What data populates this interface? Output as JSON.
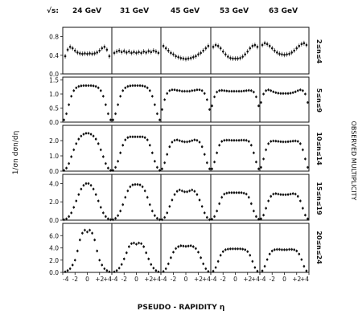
{
  "chart_data": {
    "type": "scatter",
    "sqrt_s_label": "√s:",
    "energies": [
      "24 GeV",
      "31 GeV",
      "45 GeV",
      "53 GeV",
      "63 GeV"
    ],
    "multiplicity_bins": [
      "2≤n≤4",
      "5≤n≤9",
      "10≤n≤14",
      "15≤n≤19",
      "20≤n≤24"
    ],
    "xlabel": "PSEUDO - RAPIDITY η",
    "ylabel": "1/σn dσn/dη",
    "right_label": "OBSERVED MULTIPLICITY",
    "xlim": [
      -4,
      4
    ],
    "x_ticks": [
      -4,
      -2,
      0,
      2,
      4
    ],
    "x_tick_labels": [
      "-4",
      "-2",
      "0",
      "+2",
      "+4"
    ],
    "row_axes": [
      {
        "ylim": [
          0,
          1.0
        ],
        "ticks": [
          0.0,
          0.4,
          0.8
        ],
        "tick_labels": [
          "0.0",
          "0.4",
          "0.8"
        ]
      },
      {
        "ylim": [
          0,
          1.6
        ],
        "ticks": [
          0.0,
          0.5,
          1.0,
          1.5
        ],
        "tick_labels": [
          "0.0",
          "0.5",
          "1.0",
          "1.5"
        ]
      },
      {
        "ylim": [
          0,
          3.0
        ],
        "ticks": [
          0.0,
          1.0,
          2.0
        ],
        "tick_labels": [
          "0.0",
          "1.0",
          "2.0"
        ]
      },
      {
        "ylim": [
          0,
          5.0
        ],
        "ticks": [
          0.0,
          2.0,
          4.0
        ],
        "tick_labels": [
          "0.0",
          "2.0",
          "4.0"
        ]
      },
      {
        "ylim": [
          0,
          8.0
        ],
        "ticks": [
          0.0,
          2.0,
          4.0,
          6.0
        ],
        "tick_labels": [
          "0.0",
          "2.0",
          "4.0",
          "6.0"
        ]
      }
    ],
    "series": [
      {
        "row": 0,
        "col": 0,
        "x": [
          -3.6,
          -3.2,
          -2.8,
          -2.4,
          -2.0,
          -1.6,
          -1.2,
          -0.8,
          -0.4,
          0.0,
          0.4,
          0.8,
          1.2,
          1.6,
          2.0,
          2.4,
          2.8,
          3.2,
          3.6
        ],
        "y": [
          0.38,
          0.52,
          0.58,
          0.55,
          0.5,
          0.46,
          0.44,
          0.43,
          0.44,
          0.43,
          0.44,
          0.43,
          0.44,
          0.46,
          0.5,
          0.55,
          0.58,
          0.52,
          0.38
        ]
      },
      {
        "row": 0,
        "col": 1,
        "x": [
          -3.6,
          -3.2,
          -2.8,
          -2.4,
          -2.0,
          -1.6,
          -1.2,
          -0.8,
          -0.4,
          0.0,
          0.4,
          0.8,
          1.2,
          1.6,
          2.0,
          2.4,
          2.8,
          3.2,
          3.6
        ],
        "y": [
          0.45,
          0.48,
          0.5,
          0.47,
          0.49,
          0.46,
          0.48,
          0.45,
          0.47,
          0.45,
          0.47,
          0.45,
          0.48,
          0.46,
          0.49,
          0.47,
          0.5,
          0.48,
          0.45
        ]
      },
      {
        "row": 0,
        "col": 2,
        "x": [
          -3.6,
          -3.2,
          -2.8,
          -2.4,
          -2.0,
          -1.6,
          -1.2,
          -0.8,
          -0.4,
          0.0,
          0.4,
          0.8,
          1.2,
          1.6,
          2.0,
          2.4,
          2.8,
          3.2,
          3.6
        ],
        "y": [
          0.6,
          0.55,
          0.5,
          0.45,
          0.42,
          0.38,
          0.36,
          0.34,
          0.33,
          0.32,
          0.33,
          0.34,
          0.36,
          0.38,
          0.42,
          0.45,
          0.5,
          0.55,
          0.6
        ]
      },
      {
        "row": 0,
        "col": 3,
        "x": [
          -3.6,
          -3.2,
          -2.8,
          -2.4,
          -2.0,
          -1.6,
          -1.2,
          -0.8,
          -0.4,
          0.0,
          0.4,
          0.8,
          1.2,
          1.6,
          2.0,
          2.4,
          2.8,
          3.2,
          3.6
        ],
        "y": [
          0.58,
          0.62,
          0.6,
          0.55,
          0.48,
          0.42,
          0.37,
          0.34,
          0.33,
          0.33,
          0.33,
          0.34,
          0.37,
          0.42,
          0.48,
          0.55,
          0.6,
          0.62,
          0.58
        ]
      },
      {
        "row": 0,
        "col": 4,
        "x": [
          -3.6,
          -3.2,
          -2.8,
          -2.4,
          -2.0,
          -1.6,
          -1.2,
          -0.8,
          -0.4,
          0.0,
          0.4,
          0.8,
          1.2,
          1.6,
          2.0,
          2.4,
          2.8,
          3.2,
          3.6
        ],
        "y": [
          0.62,
          0.66,
          0.64,
          0.6,
          0.55,
          0.5,
          0.46,
          0.43,
          0.42,
          0.41,
          0.42,
          0.43,
          0.46,
          0.5,
          0.55,
          0.6,
          0.64,
          0.66,
          0.62
        ]
      },
      {
        "row": 1,
        "col": 0,
        "x": [
          -3.8,
          -3.4,
          -3.0,
          -2.6,
          -2.2,
          -1.8,
          -1.4,
          -1.0,
          -0.6,
          -0.2,
          0.2,
          0.6,
          1.0,
          1.4,
          1.8,
          2.2,
          2.6,
          3.0,
          3.4,
          3.8
        ],
        "y": [
          0.08,
          0.3,
          0.62,
          0.92,
          1.12,
          1.22,
          1.27,
          1.29,
          1.3,
          1.3,
          1.3,
          1.3,
          1.29,
          1.27,
          1.22,
          1.12,
          0.92,
          0.62,
          0.3,
          0.08
        ]
      },
      {
        "row": 1,
        "col": 1,
        "x": [
          -3.8,
          -3.4,
          -3.0,
          -2.6,
          -2.2,
          -1.8,
          -1.4,
          -1.0,
          -0.6,
          -0.2,
          0.2,
          0.6,
          1.0,
          1.4,
          1.8,
          2.2,
          2.6,
          3.0,
          3.4,
          3.8
        ],
        "y": [
          0.08,
          0.3,
          0.62,
          0.92,
          1.12,
          1.22,
          1.27,
          1.29,
          1.3,
          1.3,
          1.3,
          1.3,
          1.29,
          1.27,
          1.22,
          1.12,
          0.92,
          0.62,
          0.3,
          0.08
        ]
      },
      {
        "row": 1,
        "col": 2,
        "x": [
          -3.8,
          -3.4,
          -3.0,
          -2.6,
          -2.2,
          -1.8,
          -1.4,
          -1.0,
          -0.6,
          -0.2,
          0.2,
          0.6,
          1.0,
          1.4,
          1.8,
          2.2,
          2.6,
          3.0,
          3.4,
          3.8
        ],
        "y": [
          0.45,
          0.8,
          1.02,
          1.12,
          1.15,
          1.15,
          1.13,
          1.12,
          1.1,
          1.1,
          1.1,
          1.1,
          1.12,
          1.13,
          1.15,
          1.15,
          1.12,
          1.02,
          0.8,
          0.45
        ]
      },
      {
        "row": 1,
        "col": 3,
        "x": [
          -3.8,
          -3.4,
          -3.0,
          -2.6,
          -2.2,
          -1.8,
          -1.4,
          -1.0,
          -0.6,
          -0.2,
          0.2,
          0.6,
          1.0,
          1.4,
          1.8,
          2.2,
          2.6,
          3.0,
          3.4,
          3.8
        ],
        "y": [
          0.58,
          0.9,
          1.07,
          1.12,
          1.13,
          1.12,
          1.11,
          1.1,
          1.1,
          1.1,
          1.1,
          1.1,
          1.1,
          1.11,
          1.12,
          1.13,
          1.12,
          1.07,
          0.9,
          0.58
        ]
      },
      {
        "row": 1,
        "col": 4,
        "x": [
          -3.8,
          -3.4,
          -3.0,
          -2.6,
          -2.2,
          -1.8,
          -1.4,
          -1.0,
          -0.6,
          -0.2,
          0.2,
          0.6,
          1.0,
          1.4,
          1.8,
          2.2,
          2.6,
          3.0,
          3.4,
          3.8
        ],
        "y": [
          0.7,
          1.0,
          1.12,
          1.15,
          1.12,
          1.08,
          1.05,
          1.03,
          1.02,
          1.02,
          1.02,
          1.02,
          1.03,
          1.05,
          1.08,
          1.12,
          1.15,
          1.12,
          1.0,
          0.7
        ]
      },
      {
        "row": 2,
        "col": 0,
        "x": [
          -3.8,
          -3.4,
          -3.0,
          -2.6,
          -2.2,
          -1.8,
          -1.4,
          -1.0,
          -0.6,
          -0.2,
          0.2,
          0.6,
          1.0,
          1.4,
          1.8,
          2.2,
          2.6,
          3.0,
          3.4,
          3.8
        ],
        "y": [
          0.05,
          0.2,
          0.5,
          0.95,
          1.4,
          1.8,
          2.1,
          2.3,
          2.42,
          2.48,
          2.48,
          2.42,
          2.3,
          2.1,
          1.8,
          1.4,
          0.95,
          0.5,
          0.2,
          0.05
        ]
      },
      {
        "row": 2,
        "col": 1,
        "x": [
          -3.8,
          -3.4,
          -3.0,
          -2.6,
          -2.2,
          -1.8,
          -1.4,
          -1.0,
          -0.6,
          -0.2,
          0.2,
          0.6,
          1.0,
          1.4,
          1.8,
          2.2,
          2.6,
          3.0,
          3.4,
          3.8
        ],
        "y": [
          0.05,
          0.25,
          0.65,
          1.2,
          1.7,
          2.05,
          2.2,
          2.25,
          2.25,
          2.25,
          2.25,
          2.25,
          2.25,
          2.2,
          2.05,
          1.7,
          1.2,
          0.65,
          0.25,
          0.05
        ]
      },
      {
        "row": 2,
        "col": 2,
        "x": [
          -3.8,
          -3.4,
          -3.0,
          -2.6,
          -2.2,
          -1.8,
          -1.4,
          -1.0,
          -0.6,
          -0.2,
          0.2,
          0.6,
          1.0,
          1.4,
          1.8,
          2.2,
          2.6,
          3.0,
          3.4,
          3.8
        ],
        "y": [
          0.15,
          0.55,
          1.1,
          1.6,
          1.9,
          2.02,
          2.05,
          2.0,
          1.95,
          1.92,
          1.92,
          1.95,
          2.0,
          2.05,
          2.02,
          1.9,
          1.6,
          1.1,
          0.55,
          0.15
        ]
      },
      {
        "row": 2,
        "col": 3,
        "x": [
          -3.8,
          -3.4,
          -3.0,
          -2.6,
          -2.2,
          -1.8,
          -1.4,
          -1.0,
          -0.6,
          -0.2,
          0.2,
          0.6,
          1.0,
          1.4,
          1.8,
          2.2,
          2.6,
          3.0,
          3.4,
          3.8
        ],
        "y": [
          0.15,
          0.6,
          1.2,
          1.7,
          1.95,
          2.02,
          2.03,
          2.03,
          2.02,
          2.02,
          2.02,
          2.02,
          2.03,
          2.03,
          2.02,
          1.95,
          1.7,
          1.2,
          0.6,
          0.15
        ]
      },
      {
        "row": 2,
        "col": 4,
        "x": [
          -3.8,
          -3.4,
          -3.0,
          -2.6,
          -2.2,
          -1.8,
          -1.4,
          -1.0,
          -0.6,
          -0.2,
          0.2,
          0.6,
          1.0,
          1.4,
          1.8,
          2.2,
          2.6,
          3.0,
          3.4,
          3.8
        ],
        "y": [
          0.25,
          0.8,
          1.4,
          1.8,
          1.95,
          1.98,
          1.97,
          1.95,
          1.93,
          1.92,
          1.92,
          1.93,
          1.95,
          1.97,
          1.98,
          1.95,
          1.8,
          1.4,
          0.8,
          0.25
        ]
      },
      {
        "row": 3,
        "col": 0,
        "x": [
          -3.8,
          -3.4,
          -3.0,
          -2.6,
          -2.2,
          -1.8,
          -1.4,
          -1.0,
          -0.6,
          -0.2,
          0.2,
          0.6,
          1.0,
          1.4,
          1.8,
          2.2,
          2.6,
          3.0,
          3.4,
          3.8
        ],
        "y": [
          0.05,
          0.15,
          0.4,
          0.8,
          1.4,
          2.1,
          2.8,
          3.4,
          3.8,
          4.0,
          4.0,
          3.8,
          3.4,
          2.8,
          2.1,
          1.4,
          0.8,
          0.4,
          0.15,
          0.05
        ]
      },
      {
        "row": 3,
        "col": 1,
        "x": [
          -3.8,
          -3.4,
          -3.0,
          -2.6,
          -2.2,
          -1.8,
          -1.4,
          -1.0,
          -0.6,
          -0.2,
          0.2,
          0.6,
          1.0,
          1.4,
          1.8,
          2.2,
          2.6,
          3.0,
          3.4,
          3.8
        ],
        "y": [
          0.05,
          0.2,
          0.5,
          1.0,
          1.7,
          2.5,
          3.2,
          3.65,
          3.85,
          3.9,
          3.9,
          3.85,
          3.65,
          3.2,
          2.5,
          1.7,
          1.0,
          0.5,
          0.2,
          0.05
        ]
      },
      {
        "row": 3,
        "col": 2,
        "x": [
          -3.8,
          -3.4,
          -3.0,
          -2.6,
          -2.2,
          -1.8,
          -1.4,
          -1.0,
          -0.6,
          -0.2,
          0.2,
          0.6,
          1.0,
          1.4,
          1.8,
          2.2,
          2.6,
          3.0,
          3.4,
          3.8
        ],
        "y": [
          0.05,
          0.3,
          0.8,
          1.5,
          2.2,
          2.8,
          3.15,
          3.3,
          3.2,
          3.1,
          3.1,
          3.2,
          3.3,
          3.15,
          2.8,
          2.2,
          1.5,
          0.8,
          0.3,
          0.05
        ]
      },
      {
        "row": 3,
        "col": 3,
        "x": [
          -3.8,
          -3.4,
          -3.0,
          -2.6,
          -2.2,
          -1.8,
          -1.4,
          -1.0,
          -0.6,
          -0.2,
          0.2,
          0.6,
          1.0,
          1.4,
          1.8,
          2.2,
          2.6,
          3.0,
          3.4,
          3.8
        ],
        "y": [
          0.1,
          0.4,
          1.0,
          1.8,
          2.5,
          2.85,
          2.95,
          3.0,
          3.0,
          3.0,
          3.0,
          3.0,
          3.0,
          2.95,
          2.85,
          2.5,
          1.8,
          1.0,
          0.4,
          0.1
        ]
      },
      {
        "row": 3,
        "col": 4,
        "x": [
          -3.8,
          -3.4,
          -3.0,
          -2.6,
          -2.2,
          -1.8,
          -1.4,
          -1.0,
          -0.6,
          -0.2,
          0.2,
          0.6,
          1.0,
          1.4,
          1.8,
          2.2,
          2.6,
          3.0,
          3.4,
          3.8
        ],
        "y": [
          0.15,
          0.55,
          1.3,
          2.1,
          2.6,
          2.85,
          2.9,
          2.85,
          2.8,
          2.78,
          2.78,
          2.8,
          2.85,
          2.9,
          2.85,
          2.6,
          2.1,
          1.3,
          0.55,
          0.15
        ]
      },
      {
        "row": 4,
        "col": 0,
        "x": [
          -3.6,
          -3.2,
          -2.8,
          -2.4,
          -2.0,
          -1.6,
          -1.2,
          -0.8,
          -0.4,
          0.0,
          0.4,
          0.8,
          1.2,
          1.6,
          2.0,
          2.4,
          2.8,
          3.2,
          3.6
        ],
        "y": [
          0.1,
          0.3,
          0.6,
          1.2,
          2.0,
          3.5,
          5.3,
          6.4,
          6.9,
          6.6,
          6.9,
          6.4,
          5.3,
          3.5,
          2.0,
          1.2,
          0.6,
          0.3,
          0.1
        ]
      },
      {
        "row": 4,
        "col": 1,
        "x": [
          -3.6,
          -3.2,
          -2.8,
          -2.4,
          -2.0,
          -1.6,
          -1.2,
          -0.8,
          -0.4,
          0.0,
          0.4,
          0.8,
          1.2,
          1.6,
          2.0,
          2.4,
          2.8,
          3.2,
          3.6
        ],
        "y": [
          0.1,
          0.3,
          0.7,
          1.3,
          2.2,
          3.2,
          4.2,
          4.7,
          4.8,
          4.6,
          4.8,
          4.7,
          4.2,
          3.2,
          2.2,
          1.3,
          0.7,
          0.3,
          0.1
        ]
      },
      {
        "row": 4,
        "col": 2,
        "x": [
          -3.6,
          -3.2,
          -2.8,
          -2.4,
          -2.0,
          -1.6,
          -1.2,
          -0.8,
          -0.4,
          0.0,
          0.4,
          0.8,
          1.2,
          1.6,
          2.0,
          2.4,
          2.8,
          3.2,
          3.6
        ],
        "y": [
          0.15,
          0.6,
          1.4,
          2.4,
          3.3,
          3.9,
          4.2,
          4.35,
          4.3,
          4.25,
          4.3,
          4.35,
          4.2,
          3.9,
          3.3,
          2.4,
          1.4,
          0.6,
          0.15
        ]
      },
      {
        "row": 4,
        "col": 3,
        "x": [
          -3.6,
          -3.2,
          -2.8,
          -2.4,
          -2.0,
          -1.6,
          -1.2,
          -0.8,
          -0.4,
          0.0,
          0.4,
          0.8,
          1.2,
          1.6,
          2.0,
          2.4,
          2.8,
          3.2,
          3.6
        ],
        "y": [
          0.2,
          0.8,
          1.8,
          2.8,
          3.4,
          3.7,
          3.8,
          3.85,
          3.85,
          3.85,
          3.85,
          3.85,
          3.8,
          3.7,
          3.4,
          2.8,
          1.8,
          0.8,
          0.2
        ]
      },
      {
        "row": 4,
        "col": 4,
        "x": [
          -3.6,
          -3.2,
          -2.8,
          -2.4,
          -2.0,
          -1.6,
          -1.2,
          -0.8,
          -0.4,
          0.0,
          0.4,
          0.8,
          1.2,
          1.6,
          2.0,
          2.4,
          2.8,
          3.2,
          3.6
        ],
        "y": [
          0.25,
          1.0,
          2.1,
          3.0,
          3.5,
          3.7,
          3.75,
          3.75,
          3.7,
          3.7,
          3.7,
          3.75,
          3.75,
          3.7,
          3.5,
          3.0,
          2.1,
          1.0,
          0.25
        ]
      }
    ]
  }
}
